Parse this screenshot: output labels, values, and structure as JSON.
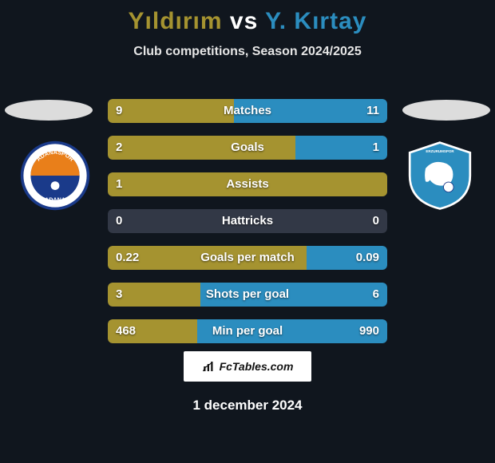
{
  "title": {
    "left_name": "Yıldırım",
    "vs": "vs",
    "right_name": "Y. Kırtay",
    "left_color": "#a59330",
    "vs_color": "#ffffff",
    "right_color": "#2b8dbf"
  },
  "subtitle": "Club competitions, Season 2024/2025",
  "bars": {
    "track_color": "#323846",
    "left_fill_color": "#a59330",
    "right_fill_color": "#2b8dbf",
    "rows": [
      {
        "label": "Matches",
        "left_val": "9",
        "right_val": "11",
        "left_pct": 45,
        "right_pct": 55
      },
      {
        "label": "Goals",
        "left_val": "2",
        "right_val": "1",
        "left_pct": 67,
        "right_pct": 33
      },
      {
        "label": "Assists",
        "left_val": "1",
        "right_val": "",
        "left_pct": 100,
        "right_pct": 0
      },
      {
        "label": "Hattricks",
        "left_val": "0",
        "right_val": "0",
        "left_pct": 0,
        "right_pct": 0
      },
      {
        "label": "Goals per match",
        "left_val": "0.22",
        "right_val": "0.09",
        "left_pct": 71,
        "right_pct": 29
      },
      {
        "label": "Shots per goal",
        "left_val": "3",
        "right_val": "6",
        "left_pct": 33,
        "right_pct": 67
      },
      {
        "label": "Min per goal",
        "left_val": "468",
        "right_val": "990",
        "left_pct": 32,
        "right_pct": 68
      }
    ]
  },
  "crest_left": {
    "bg": "#ffffff",
    "ring": "#1a3a8a",
    "accent": "#e97f1a",
    "text_top": "ADANASPOR",
    "text_bottom": "ADANA"
  },
  "crest_right": {
    "bg": "#2b8dbf",
    "accent": "#ffffff",
    "text": "ERZURUMSPOR"
  },
  "footer_brand": "FcTables.com",
  "date": "1 december 2024"
}
